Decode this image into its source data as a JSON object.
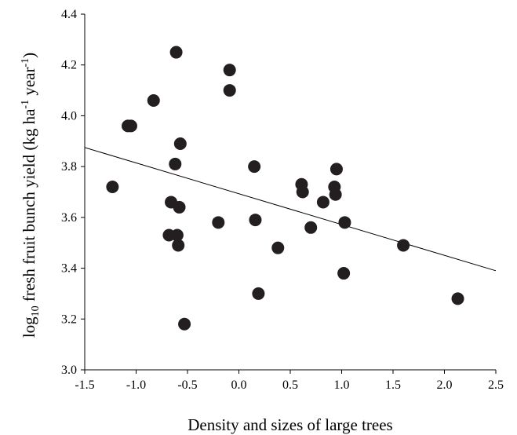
{
  "chart_data": {
    "type": "scatter",
    "xlabel": "Density and sizes of large trees",
    "ylabel": {
      "prefix": "log",
      "subscript": "10",
      "main": " fresh fruit bunch yield (kg ha",
      "sup1": "-1",
      "mid": " year",
      "sup2": "-1",
      "suffix": ")"
    },
    "xlim": [
      -1.5,
      2.5
    ],
    "ylim": [
      3.0,
      4.4
    ],
    "xticks": [
      -1.5,
      -1.0,
      -0.5,
      0.0,
      0.5,
      1.0,
      1.5,
      2.0,
      2.5
    ],
    "xtick_labels": [
      "-1.5",
      "-1.0",
      "-0.5",
      "0.0",
      "0.5",
      "1.0",
      "1.5",
      "2.0",
      "2.5"
    ],
    "yticks": [
      3.0,
      3.2,
      3.4,
      3.6,
      3.8,
      4.0,
      4.2,
      4.4
    ],
    "ytick_labels": [
      "3.0",
      "3.2",
      "3.4",
      "3.6",
      "3.8",
      "4.0",
      "4.2",
      "4.4"
    ],
    "grid": false,
    "legend": "none",
    "colors": {
      "points": "#231f20",
      "line": "#000000",
      "axes": "#000000"
    },
    "series": [
      {
        "points": [
          {
            "x": -1.23,
            "y": 3.72
          },
          {
            "x": -1.08,
            "y": 3.96
          },
          {
            "x": -1.05,
            "y": 3.96
          },
          {
            "x": -0.83,
            "y": 4.06
          },
          {
            "x": -0.68,
            "y": 3.53
          },
          {
            "x": -0.66,
            "y": 3.66
          },
          {
            "x": -0.62,
            "y": 3.81
          },
          {
            "x": -0.61,
            "y": 4.25
          },
          {
            "x": -0.6,
            "y": 3.53
          },
          {
            "x": -0.59,
            "y": 3.49
          },
          {
            "x": -0.58,
            "y": 3.64
          },
          {
            "x": -0.57,
            "y": 3.89
          },
          {
            "x": -0.53,
            "y": 3.18
          },
          {
            "x": -0.2,
            "y": 3.58
          },
          {
            "x": -0.09,
            "y": 4.18
          },
          {
            "x": -0.09,
            "y": 4.1
          },
          {
            "x": 0.15,
            "y": 3.8
          },
          {
            "x": 0.16,
            "y": 3.59
          },
          {
            "x": 0.19,
            "y": 3.3
          },
          {
            "x": 0.38,
            "y": 3.48
          },
          {
            "x": 0.61,
            "y": 3.73
          },
          {
            "x": 0.62,
            "y": 3.7
          },
          {
            "x": 0.7,
            "y": 3.56
          },
          {
            "x": 0.82,
            "y": 3.66
          },
          {
            "x": 0.93,
            "y": 3.72
          },
          {
            "x": 0.94,
            "y": 3.69
          },
          {
            "x": 0.95,
            "y": 3.79
          },
          {
            "x": 1.02,
            "y": 3.38
          },
          {
            "x": 1.03,
            "y": 3.58
          },
          {
            "x": 1.6,
            "y": 3.49
          },
          {
            "x": 2.13,
            "y": 3.28
          }
        ]
      }
    ],
    "trendline": {
      "x": [
        -1.5,
        2.5
      ],
      "y": [
        3.875,
        3.39
      ]
    }
  }
}
